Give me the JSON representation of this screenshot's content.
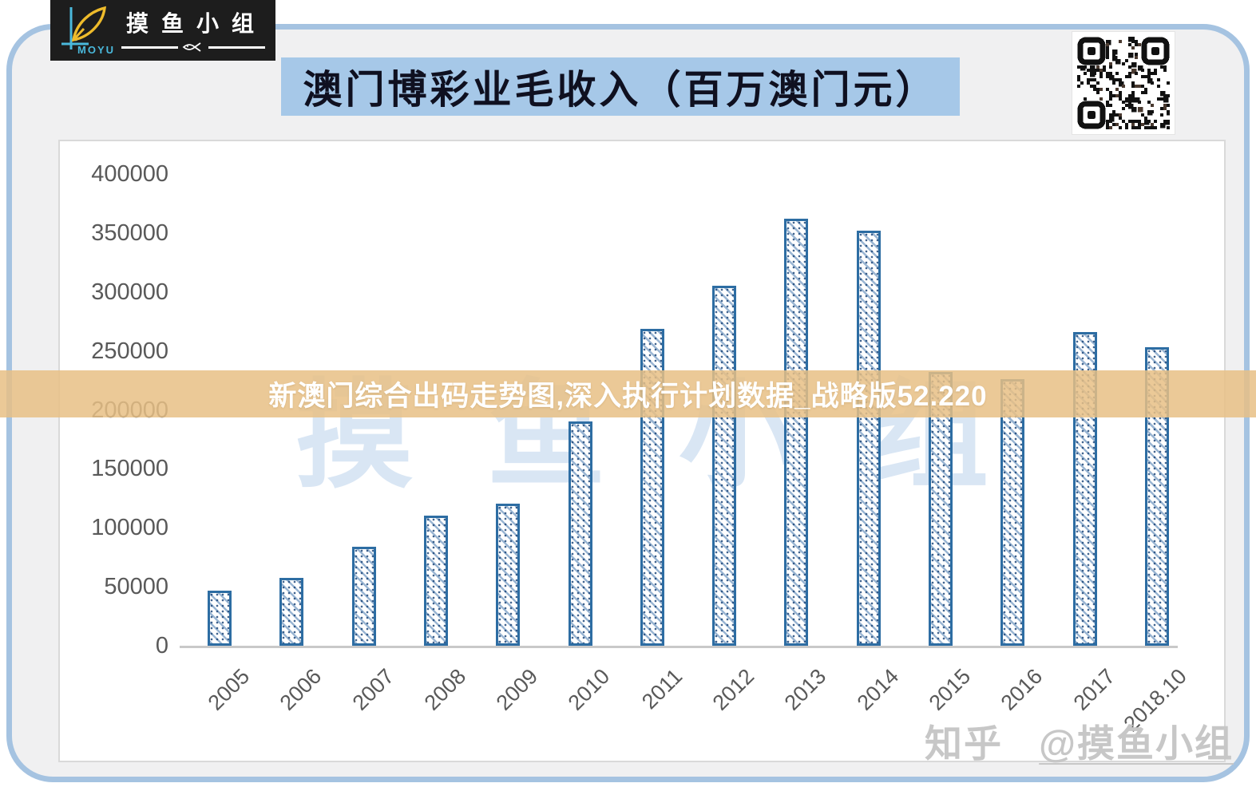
{
  "logo": {
    "brand": "MOYU",
    "group_name": "摸鱼小组",
    "colors": {
      "bg": "#1d1d1d",
      "fish_yellow": "#eebb2b",
      "axis_blue": "#4ab9dc",
      "text": "#ffffff"
    }
  },
  "header": {
    "title": "澳门博彩业毛收入（百万澳门元）",
    "bg": "#a6c8e8",
    "text_color": "#0f1020"
  },
  "overlay_banner": {
    "text": "新澳门综合出码走势图,深入执行计划数据_战略版52.220",
    "bg": "#e7bf85",
    "text_color": "#ffffff"
  },
  "watermarks": {
    "chart_watermark": "摸鱼小组",
    "bottom_right_prefix": "知乎",
    "bottom_right_handle": "@摸鱼小组"
  },
  "chart_data": {
    "type": "bar",
    "title": "澳门博彩业毛收入（百万澳门元）",
    "xlabel": "",
    "ylabel": "",
    "categories": [
      "2005",
      "2006",
      "2007",
      "2008",
      "2009",
      "2010",
      "2011",
      "2012",
      "2013",
      "2014",
      "2015",
      "2016",
      "2017",
      "2018.10"
    ],
    "values": [
      47000,
      57500,
      84000,
      110000,
      120500,
      190000,
      269000,
      305000,
      362000,
      352000,
      232000,
      226000,
      266000,
      253000
    ],
    "y_ticks": [
      0,
      50000,
      100000,
      150000,
      200000,
      250000,
      300000,
      350000,
      400000
    ],
    "ylim": [
      0,
      400000
    ],
    "grid": false,
    "legend": "none",
    "bar_style": {
      "border_color": "#2d6da3",
      "fill": "#ffffff",
      "hatch": "diagonal-dotted"
    }
  }
}
